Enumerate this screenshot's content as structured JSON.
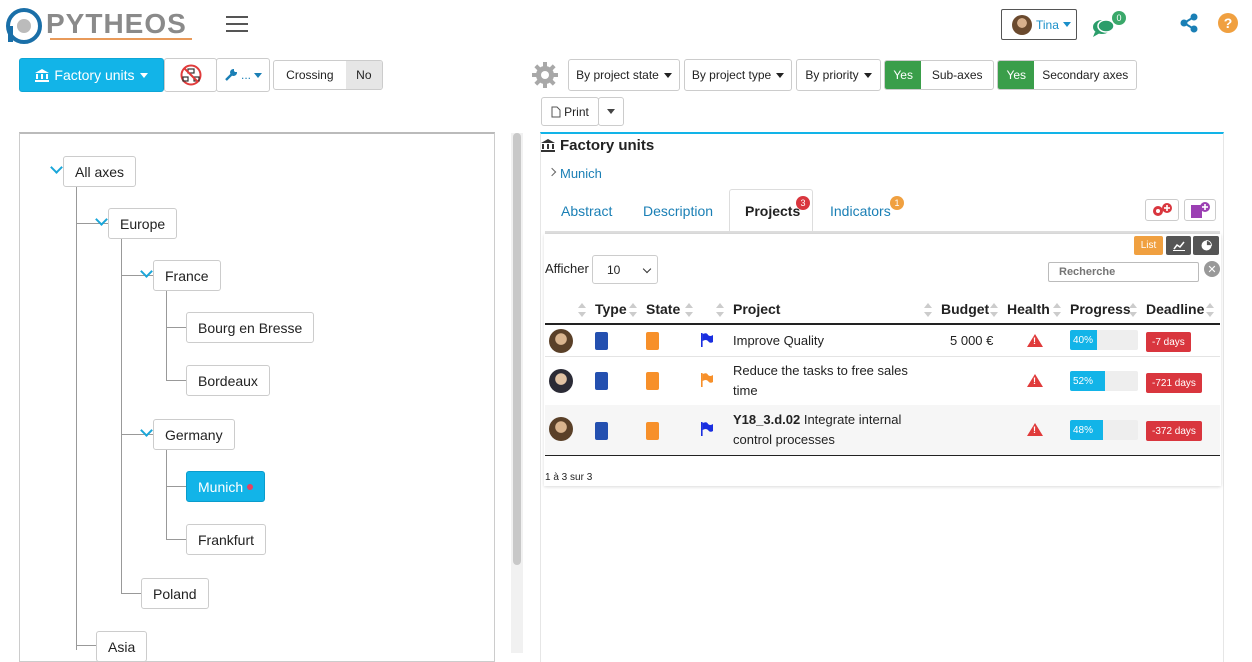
{
  "app": {
    "brand": "PYTHEOS"
  },
  "header": {
    "user_name": "Tina",
    "chat_count": "0"
  },
  "toolbar": {
    "factory_units": "Factory units",
    "tools_label": "...",
    "crossing_label": "Crossing",
    "crossing_value": "No",
    "by_project_state": "By project state",
    "by_project_type": "By project type",
    "by_priority": "By priority",
    "sub_axes_toggle": "Yes",
    "sub_axes_label": "Sub-axes",
    "secondary_toggle": "Yes",
    "secondary_label": "Secondary axes",
    "print": "Print"
  },
  "tree": {
    "all_axes": "All axes",
    "europe": "Europe",
    "france": "France",
    "bourg": "Bourg en Bresse",
    "bordeaux": "Bordeaux",
    "germany": "Germany",
    "munich": "Munich",
    "frankfurt": "Frankfurt",
    "poland": "Poland",
    "asia": "Asia"
  },
  "detail": {
    "title": "Factory units",
    "breadcrumb": "Munich",
    "tabs": [
      {
        "label": "Abstract"
      },
      {
        "label": "Description"
      },
      {
        "label": "Projects",
        "badge": "3"
      },
      {
        "label": "Indicators",
        "badge": "1"
      }
    ],
    "list_btn": "List",
    "show_label": "Afficher",
    "show_value": "10",
    "search_placeholder": "Recherche",
    "columns": [
      "Type",
      "State",
      "Project",
      "Budget",
      "Health",
      "Progress",
      "Deadline"
    ],
    "rows": [
      {
        "code": "",
        "project": "Improve Quality",
        "project2": "",
        "budget": "5 000 €",
        "progress": "40%",
        "progress_value": 40,
        "deadline": "-7 days",
        "state_color": "#f7902a",
        "flag_color": "#1a2fe0"
      },
      {
        "code": "",
        "project": "Reduce the tasks to free sales",
        "project2": "time",
        "budget": "",
        "progress": "52%",
        "progress_value": 52,
        "deadline": "-721 days",
        "state_color": "#f7902a",
        "flag_color": "#f7902a"
      },
      {
        "code": "Y18_3.d.02",
        "project": "Integrate internal",
        "project2": "control processes",
        "budget": "",
        "progress": "48%",
        "progress_value": 48,
        "deadline": "-372 days",
        "state_color": "#f7902a",
        "flag_color": "#1a2fe0"
      }
    ],
    "footer": "1 à 3 sur 3"
  }
}
